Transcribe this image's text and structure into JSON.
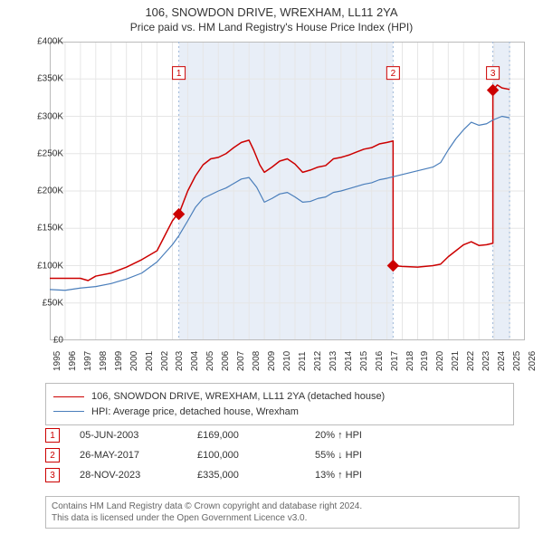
{
  "title": {
    "line1": "106, SNOWDON DRIVE, WREXHAM, LL11 2YA",
    "line2": "Price paid vs. HM Land Registry's House Price Index (HPI)",
    "fontsize_line1": 13,
    "fontsize_line2": 12,
    "color": "#333333"
  },
  "chart": {
    "type": "line",
    "background_color": "#ffffff",
    "plot_border_color": "#bbbbbb",
    "grid_color": "#e6e6e6",
    "x": {
      "min": 1995,
      "max": 2026,
      "tick_step": 1,
      "tick_label_fontsize": 10,
      "tick_rotation_deg": -90
    },
    "y": {
      "min": 0,
      "max": 400000,
      "tick_step": 50000,
      "tick_labels": [
        "£0",
        "£50K",
        "£100K",
        "£150K",
        "£200K",
        "£250K",
        "£300K",
        "£350K",
        "£400K"
      ],
      "tick_label_fontsize": 10
    },
    "shaded_bands": [
      {
        "from": 2003.42,
        "to": 2017.4,
        "color": "#e8eef7"
      },
      {
        "from": 2023.91,
        "to": 2025.0,
        "color": "#e8eef7"
      }
    ],
    "series": [
      {
        "name": "106, SNOWDON DRIVE, WREXHAM, LL11 2YA (detached house)",
        "color": "#cc0000",
        "line_width": 1.5,
        "data": [
          [
            1995.0,
            83000
          ],
          [
            1996.0,
            83000
          ],
          [
            1997.0,
            83000
          ],
          [
            1997.5,
            80000
          ],
          [
            1998.0,
            86000
          ],
          [
            1999.0,
            90000
          ],
          [
            2000.0,
            98000
          ],
          [
            2001.0,
            108000
          ],
          [
            2002.0,
            120000
          ],
          [
            2002.5,
            140000
          ],
          [
            2003.0,
            160000
          ],
          [
            2003.3,
            168000
          ],
          [
            2003.42,
            169000
          ],
          [
            2004.0,
            200000
          ],
          [
            2004.5,
            220000
          ],
          [
            2005.0,
            235000
          ],
          [
            2005.5,
            243000
          ],
          [
            2006.0,
            245000
          ],
          [
            2006.5,
            250000
          ],
          [
            2007.0,
            258000
          ],
          [
            2007.5,
            265000
          ],
          [
            2008.0,
            268000
          ],
          [
            2008.3,
            255000
          ],
          [
            2008.7,
            235000
          ],
          [
            2009.0,
            225000
          ],
          [
            2009.5,
            232000
          ],
          [
            2010.0,
            240000
          ],
          [
            2010.5,
            243000
          ],
          [
            2011.0,
            236000
          ],
          [
            2011.5,
            225000
          ],
          [
            2012.0,
            228000
          ],
          [
            2012.5,
            232000
          ],
          [
            2013.0,
            234000
          ],
          [
            2013.5,
            243000
          ],
          [
            2014.0,
            245000
          ],
          [
            2014.5,
            248000
          ],
          [
            2015.0,
            252000
          ],
          [
            2015.5,
            256000
          ],
          [
            2016.0,
            258000
          ],
          [
            2016.5,
            263000
          ],
          [
            2017.0,
            265000
          ],
          [
            2017.4,
            267000
          ],
          [
            2017.4,
            100000
          ],
          [
            2018.0,
            99000
          ],
          [
            2019.0,
            98000
          ],
          [
            2020.0,
            100000
          ],
          [
            2020.5,
            102000
          ],
          [
            2021.0,
            112000
          ],
          [
            2021.5,
            120000
          ],
          [
            2022.0,
            128000
          ],
          [
            2022.5,
            132000
          ],
          [
            2023.0,
            127000
          ],
          [
            2023.5,
            128000
          ],
          [
            2023.91,
            130000
          ],
          [
            2023.91,
            335000
          ],
          [
            2024.2,
            342000
          ],
          [
            2024.5,
            338000
          ],
          [
            2025.0,
            336000
          ]
        ],
        "markers": [
          {
            "x": 2003.42,
            "y": 169000,
            "shape": "diamond",
            "size": 6
          },
          {
            "x": 2017.4,
            "y": 100000,
            "shape": "diamond",
            "size": 6
          },
          {
            "x": 2023.91,
            "y": 335000,
            "shape": "diamond",
            "size": 6
          }
        ]
      },
      {
        "name": "HPI: Average price, detached house, Wrexham",
        "color": "#4a7ebb",
        "line_width": 1.2,
        "data": [
          [
            1995.0,
            68000
          ],
          [
            1996.0,
            67000
          ],
          [
            1997.0,
            70000
          ],
          [
            1998.0,
            72000
          ],
          [
            1999.0,
            76000
          ],
          [
            2000.0,
            82000
          ],
          [
            2001.0,
            90000
          ],
          [
            2002.0,
            105000
          ],
          [
            2003.0,
            128000
          ],
          [
            2003.42,
            140000
          ],
          [
            2004.0,
            160000
          ],
          [
            2004.5,
            178000
          ],
          [
            2005.0,
            190000
          ],
          [
            2005.5,
            195000
          ],
          [
            2006.0,
            200000
          ],
          [
            2006.5,
            204000
          ],
          [
            2007.0,
            210000
          ],
          [
            2007.5,
            216000
          ],
          [
            2008.0,
            218000
          ],
          [
            2008.5,
            205000
          ],
          [
            2009.0,
            185000
          ],
          [
            2009.5,
            190000
          ],
          [
            2010.0,
            196000
          ],
          [
            2010.5,
            198000
          ],
          [
            2011.0,
            192000
          ],
          [
            2011.5,
            185000
          ],
          [
            2012.0,
            186000
          ],
          [
            2012.5,
            190000
          ],
          [
            2013.0,
            192000
          ],
          [
            2013.5,
            198000
          ],
          [
            2014.0,
            200000
          ],
          [
            2014.5,
            203000
          ],
          [
            2015.0,
            206000
          ],
          [
            2015.5,
            209000
          ],
          [
            2016.0,
            211000
          ],
          [
            2016.5,
            215000
          ],
          [
            2017.0,
            217000
          ],
          [
            2017.4,
            219000
          ],
          [
            2018.0,
            222000
          ],
          [
            2019.0,
            227000
          ],
          [
            2020.0,
            232000
          ],
          [
            2020.5,
            238000
          ],
          [
            2021.0,
            255000
          ],
          [
            2021.5,
            270000
          ],
          [
            2022.0,
            282000
          ],
          [
            2022.5,
            292000
          ],
          [
            2023.0,
            288000
          ],
          [
            2023.5,
            290000
          ],
          [
            2023.91,
            295000
          ],
          [
            2024.5,
            300000
          ],
          [
            2025.0,
            298000
          ]
        ]
      }
    ],
    "event_flags": [
      {
        "n": "1",
        "x": 2003.42,
        "y_label": 358000,
        "border_color": "#cc0000"
      },
      {
        "n": "2",
        "x": 2017.4,
        "y_label": 358000,
        "border_color": "#cc0000"
      },
      {
        "n": "3",
        "x": 2023.91,
        "y_label": 358000,
        "border_color": "#cc0000"
      }
    ]
  },
  "legend": {
    "border_color": "#bbbbbb",
    "fontsize": 11,
    "items": [
      {
        "color": "#cc0000",
        "line_width": 1.5,
        "label": "106, SNOWDON DRIVE, WREXHAM, LL11 2YA (detached house)"
      },
      {
        "color": "#4a7ebb",
        "line_width": 1.2,
        "label": "HPI: Average price, detached house, Wrexham"
      }
    ]
  },
  "events": [
    {
      "n": "1",
      "date": "05-JUN-2003",
      "price": "£169,000",
      "delta": "20% ↑ HPI",
      "border_color": "#cc0000",
      "text_color": "#cc0000"
    },
    {
      "n": "2",
      "date": "26-MAY-2017",
      "price": "£100,000",
      "delta": "55% ↓ HPI",
      "border_color": "#cc0000",
      "text_color": "#cc0000"
    },
    {
      "n": "3",
      "date": "28-NOV-2023",
      "price": "£335,000",
      "delta": "13% ↑ HPI",
      "border_color": "#cc0000",
      "text_color": "#cc0000"
    }
  ],
  "footer": {
    "line1": "Contains HM Land Registry data © Crown copyright and database right 2024.",
    "line2": "This data is licensed under the Open Government Licence v3.0.",
    "fontsize": 10,
    "color": "#666666",
    "border_color": "#bbbbbb"
  }
}
